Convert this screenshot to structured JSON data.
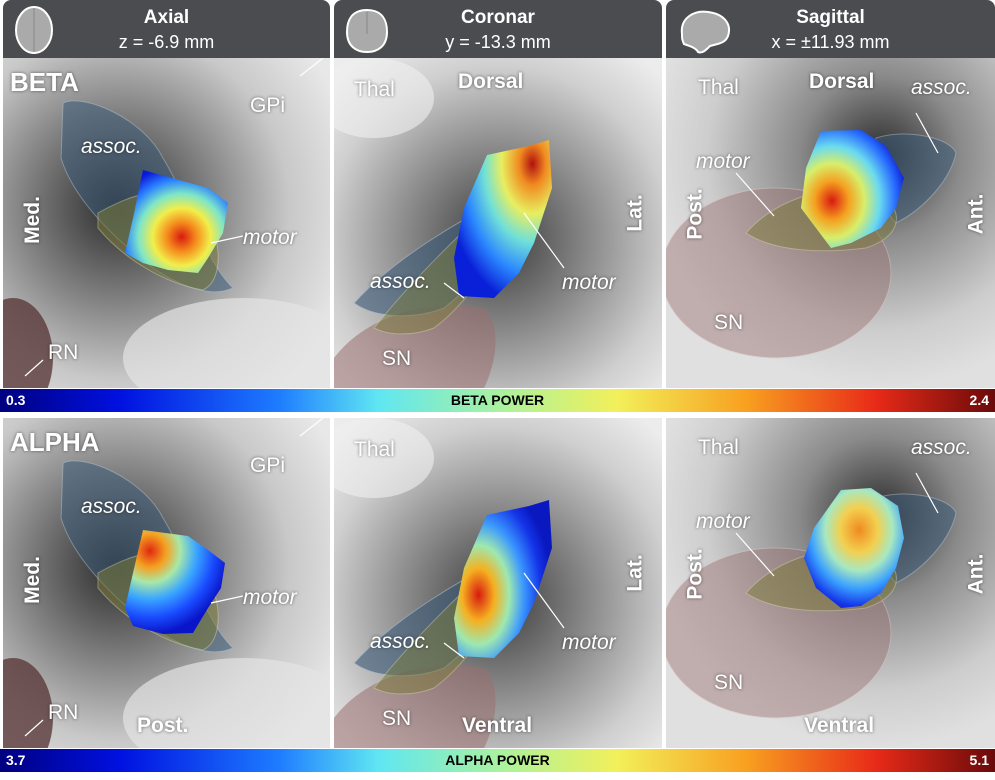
{
  "headers": [
    {
      "title": "Axial",
      "coord": "z = -6.9 mm",
      "icon": "brain-axial-icon"
    },
    {
      "title": "Coronar",
      "coord": "y = -13.3 mm",
      "icon": "brain-coronal-icon"
    },
    {
      "title": "Sagittal",
      "coord": "x = ±11.93 mm",
      "icon": "brain-sagittal-icon"
    }
  ],
  "rows": [
    {
      "name": "BETA",
      "colorbar": {
        "min": "0.3",
        "label": "BETA POWER",
        "max": "2.4"
      },
      "axial": {
        "gpi": "GPi",
        "assoc": "assoc.",
        "motor": "motor",
        "med": "Med.",
        "rn": "RN"
      },
      "coronal": {
        "thal": "Thal",
        "dorsal": "Dorsal",
        "lat": "Lat.",
        "assoc": "assoc.",
        "motor": "motor",
        "sn": "SN"
      },
      "sagittal": {
        "thal": "Thal",
        "dorsal": "Dorsal",
        "assoc": "assoc.",
        "motor": "motor",
        "post": "Post.",
        "ant": "Ant.",
        "sn": "SN"
      }
    },
    {
      "name": "ALPHA",
      "colorbar": {
        "min": "3.7",
        "label": "ALPHA POWER",
        "max": "5.1"
      },
      "axial": {
        "gpi": "GPi",
        "assoc": "assoc.",
        "motor": "motor",
        "med": "Med.",
        "rn": "RN",
        "post": "Post."
      },
      "coronal": {
        "thal": "Thal",
        "lat": "Lat.",
        "assoc": "assoc.",
        "motor": "motor",
        "sn": "SN",
        "ventral": "Ventral"
      },
      "sagittal": {
        "thal": "Thal",
        "assoc": "assoc.",
        "motor": "motor",
        "post": "Post.",
        "ant": "Ant.",
        "sn": "SN",
        "ventral": "Ventral"
      }
    }
  ],
  "colors": {
    "header_bg": "#4a4c50",
    "assoc_region": "#3b5a78",
    "motor_region": "#7a7a3a",
    "sn_region": "#9a7070"
  }
}
